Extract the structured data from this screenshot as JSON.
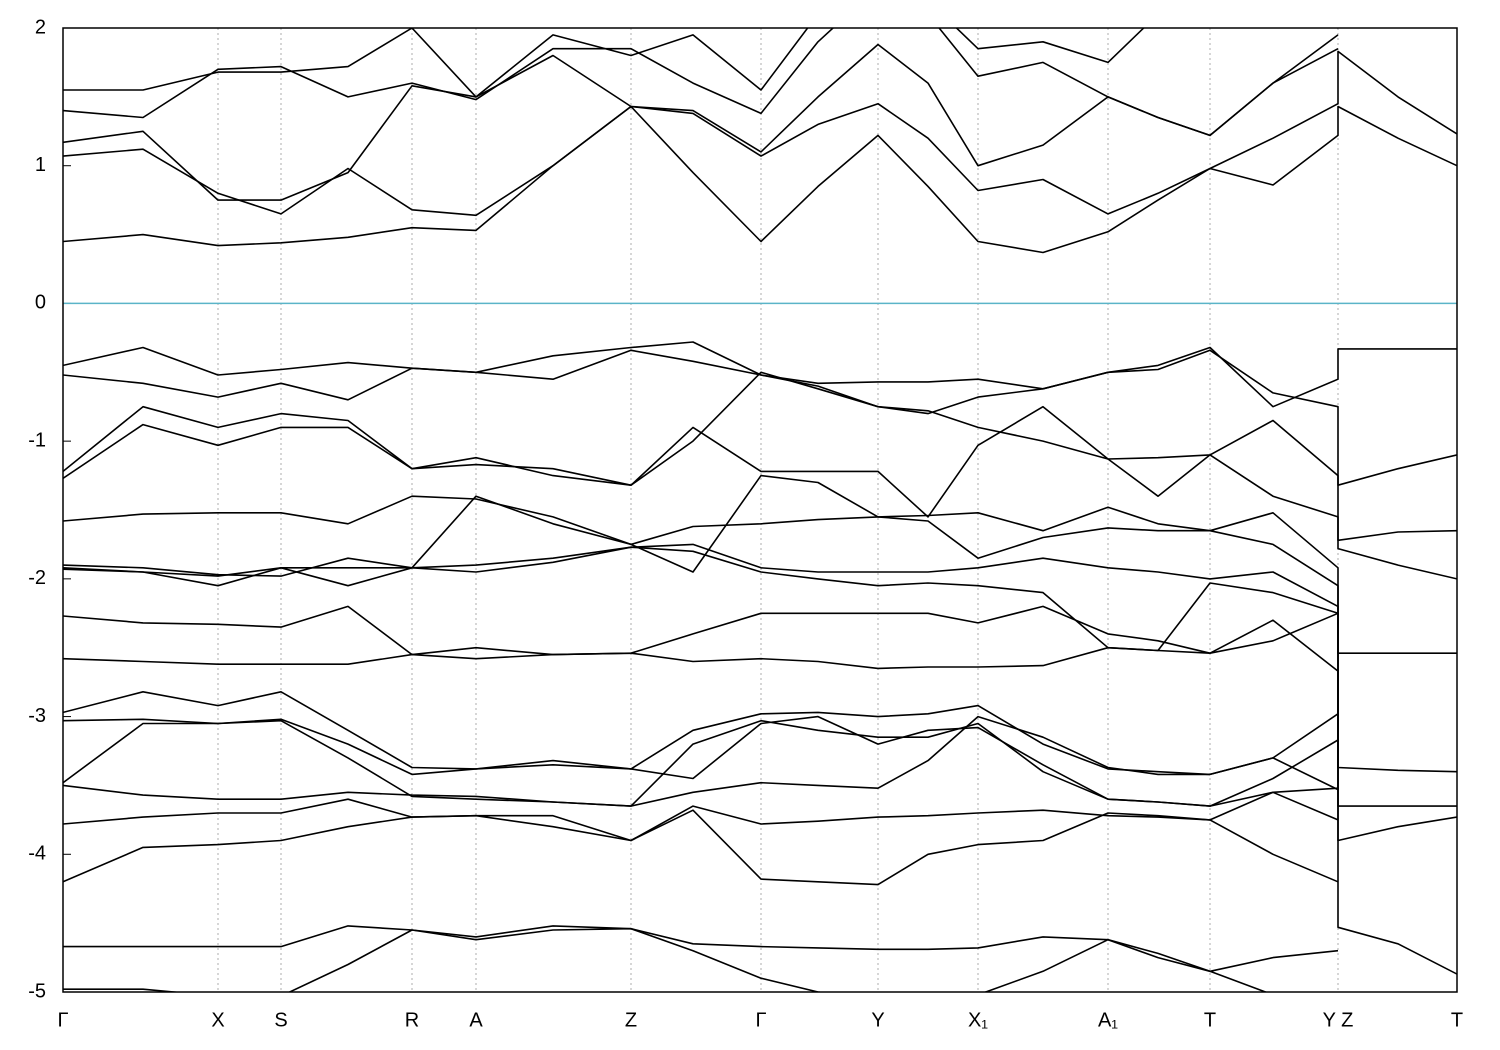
{
  "chart_data": {
    "type": "line",
    "x": [
      0,
      0.8,
      1.55,
      2.18,
      2.85,
      3.49,
      4.13,
      4.9,
      5.68,
      6.3,
      6.98,
      7.55,
      8.15,
      8.65,
      9.15,
      9.8,
      10.45,
      10.95,
      11.47,
      12.1,
      12.75,
      12.75,
      13.35,
      13.94
    ],
    "xlim": [
      0,
      13.94
    ],
    "xticks": [
      {
        "value": 0,
        "label": "Γ"
      },
      {
        "value": 1.55,
        "label": "X"
      },
      {
        "value": 2.18,
        "label": "S"
      },
      {
        "value": 3.49,
        "label": "R"
      },
      {
        "value": 4.13,
        "label": "A"
      },
      {
        "value": 5.68,
        "label": "Z"
      },
      {
        "value": 6.98,
        "label": "Γ"
      },
      {
        "value": 8.15,
        "label": "Y"
      },
      {
        "value": 9.15,
        "label": "X₁"
      },
      {
        "value": 10.45,
        "label": "A₁"
      },
      {
        "value": 11.47,
        "label": "T"
      },
      {
        "value": 12.75,
        "label": "Y Z"
      },
      {
        "value": 13.94,
        "label": "T"
      }
    ],
    "ylim": [
      -5,
      2
    ],
    "yticks": [
      -5,
      -4,
      -3,
      -2,
      -1,
      0,
      1,
      2
    ],
    "grid": true,
    "line_color": "#000000",
    "fermi_level": 0,
    "fermi_color": "#5ab4c8",
    "series": [
      {
        "values": [
          0.45,
          0.5,
          0.42,
          0.44,
          0.48,
          0.55,
          0.53,
          1.0,
          1.43,
          0.95,
          0.45,
          0.85,
          1.22,
          0.85,
          0.45,
          0.37,
          0.52,
          0.75,
          0.98,
          0.86,
          1.22,
          1.43,
          1.2,
          1.0
        ]
      },
      {
        "values": [
          1.07,
          1.12,
          0.8,
          0.65,
          0.98,
          0.68,
          0.64,
          1.0,
          1.43,
          1.38,
          1.07,
          1.3,
          1.45,
          1.2,
          0.82,
          0.9,
          0.65,
          0.8,
          0.98,
          1.2,
          1.45,
          1.83,
          1.5,
          1.23
        ]
      },
      {
        "values": [
          1.17,
          1.25,
          0.75,
          0.75,
          0.95,
          1.58,
          1.5,
          1.8,
          1.43,
          1.4,
          1.1,
          1.5,
          1.88,
          1.6,
          1.0,
          1.15,
          1.5,
          1.35,
          1.22,
          1.6,
          1.85,
          null,
          null,
          null
        ]
      },
      {
        "values": [
          1.4,
          1.35,
          1.7,
          1.72,
          1.5,
          1.6,
          1.48,
          1.85,
          1.85,
          1.6,
          1.38,
          1.9,
          2.3,
          2.1,
          1.65,
          1.75,
          1.5,
          1.35,
          1.22,
          1.6,
          1.95,
          null,
          null,
          null
        ]
      },
      {
        "values": [
          1.55,
          1.55,
          1.68,
          1.68,
          1.72,
          2.0,
          1.5,
          1.95,
          1.8,
          1.95,
          1.55,
          2.1,
          2.4,
          2.2,
          1.85,
          1.9,
          1.75,
          2.1,
          2.3,
          2.2,
          2.0,
          null,
          null,
          null
        ]
      },
      {
        "values": [
          -0.45,
          -0.32,
          -0.52,
          -0.48,
          -0.43,
          -0.47,
          -0.5,
          -0.38,
          -0.32,
          -0.28,
          -0.52,
          -0.6,
          -0.75,
          -0.8,
          -0.68,
          -0.62,
          -0.5,
          -0.45,
          -0.32,
          -0.75,
          -0.55,
          -0.33,
          -0.33,
          -0.33
        ]
      },
      {
        "values": [
          -0.52,
          -0.58,
          -0.68,
          -0.58,
          -0.7,
          -0.47,
          -0.5,
          -0.55,
          -0.34,
          -0.42,
          -0.52,
          -0.58,
          -0.57,
          -0.57,
          -0.55,
          -0.62,
          -0.5,
          -0.48,
          -0.34,
          -0.65,
          -0.75,
          -1.32,
          -1.2,
          -1.1
        ]
      },
      {
        "values": [
          -1.22,
          -0.75,
          -0.9,
          -0.8,
          -0.85,
          -1.2,
          -1.12,
          -1.25,
          -1.32,
          -1.0,
          -0.5,
          -0.62,
          -0.75,
          -0.78,
          -0.9,
          -1.0,
          -1.13,
          -1.12,
          -1.1,
          -0.85,
          -1.25,
          -1.72,
          -1.66,
          -1.65
        ]
      },
      {
        "values": [
          -1.27,
          -0.88,
          -1.03,
          -0.9,
          -0.9,
          -1.2,
          -1.17,
          -1.2,
          -1.32,
          -0.9,
          -1.22,
          -1.22,
          -1.22,
          -1.55,
          -1.03,
          -0.75,
          -1.13,
          -1.4,
          -1.1,
          -1.4,
          -1.55,
          -1.78,
          -1.9,
          -2.0
        ]
      },
      {
        "values": [
          -1.58,
          -1.53,
          -1.52,
          -1.52,
          -1.6,
          -1.4,
          -1.42,
          -1.55,
          -1.75,
          -1.62,
          -1.6,
          -1.57,
          -1.55,
          -1.54,
          -1.52,
          -1.65,
          -1.48,
          -1.6,
          -1.65,
          -1.52,
          -1.92,
          -2.54,
          -2.54,
          -2.54
        ]
      },
      {
        "values": [
          -1.9,
          -1.92,
          -1.97,
          -1.98,
          -1.85,
          -1.92,
          -1.4,
          -1.6,
          -1.75,
          -1.95,
          -1.25,
          -1.3,
          -1.55,
          -1.58,
          -1.85,
          -1.7,
          -1.63,
          -1.65,
          -1.65,
          -1.75,
          -2.05,
          -3.37,
          -3.39,
          -3.4
        ]
      },
      {
        "values": [
          -1.92,
          -1.95,
          -2.05,
          -1.92,
          -1.92,
          -1.92,
          -1.95,
          -1.88,
          -1.77,
          -1.75,
          -1.92,
          -1.95,
          -1.95,
          -1.95,
          -1.92,
          -1.85,
          -1.92,
          -1.95,
          -2.0,
          -1.95,
          -2.2,
          -3.65,
          -3.65,
          -3.65
        ]
      },
      {
        "values": [
          -1.93,
          -1.95,
          -1.98,
          -1.92,
          -2.05,
          -1.92,
          -1.9,
          -1.85,
          -1.77,
          -1.8,
          -1.95,
          -2.0,
          -2.05,
          -2.03,
          -2.05,
          -2.1,
          -2.5,
          -2.52,
          -2.03,
          -2.1,
          -2.25,
          -3.9,
          -3.8,
          -3.73
        ]
      },
      {
        "values": [
          -2.27,
          -2.32,
          -2.33,
          -2.35,
          -2.2,
          -2.55,
          -2.5,
          -2.55,
          -2.54,
          -2.4,
          -2.25,
          -2.25,
          -2.25,
          -2.25,
          -2.32,
          -2.2,
          -2.4,
          -2.45,
          -2.54,
          -2.3,
          -2.67,
          -4.53,
          -4.65,
          -4.87
        ]
      },
      {
        "values": [
          -2.58,
          -2.6,
          -2.62,
          -2.62,
          -2.62,
          -2.55,
          -2.58,
          -2.55,
          -2.54,
          -2.6,
          -2.58,
          -2.6,
          -2.65,
          -2.64,
          -2.64,
          -2.63,
          -2.5,
          -2.52,
          -2.54,
          -2.45,
          -2.25,
          null,
          null,
          null
        ]
      },
      {
        "values": [
          -2.97,
          -2.82,
          -2.92,
          -2.82,
          -3.1,
          -3.37,
          -3.38,
          -3.35,
          -3.38,
          -3.1,
          -2.98,
          -2.97,
          -3.0,
          -2.98,
          -2.92,
          -3.2,
          -3.38,
          -3.4,
          -3.42,
          -3.3,
          -2.98,
          null,
          null,
          null
        ]
      },
      {
        "values": [
          -3.03,
          -3.02,
          -3.05,
          -3.03,
          -3.3,
          -3.58,
          -3.6,
          -3.62,
          -3.65,
          -3.2,
          -3.03,
          -3.1,
          -3.15,
          -3.15,
          -3.05,
          -3.4,
          -3.6,
          -3.62,
          -3.65,
          -3.45,
          -3.17,
          null,
          null,
          null
        ]
      },
      {
        "values": [
          -3.48,
          -3.05,
          -3.05,
          -3.02,
          -3.2,
          -3.42,
          -3.38,
          -3.32,
          -3.38,
          -3.45,
          -3.05,
          -3.0,
          -3.2,
          -3.1,
          -3.08,
          -3.35,
          -3.6,
          -3.62,
          -3.65,
          -3.55,
          -3.52,
          null,
          null,
          null
        ]
      },
      {
        "values": [
          -3.5,
          -3.57,
          -3.6,
          -3.6,
          -3.55,
          -3.57,
          -3.58,
          -3.62,
          -3.65,
          -3.55,
          -3.48,
          -3.5,
          -3.52,
          -3.32,
          -3.0,
          -3.15,
          -3.37,
          -3.42,
          -3.42,
          -3.3,
          -3.53,
          null,
          null,
          null
        ]
      },
      {
        "values": [
          -3.78,
          -3.73,
          -3.7,
          -3.7,
          -3.6,
          -3.73,
          -3.72,
          -3.8,
          -3.9,
          -3.65,
          -3.78,
          -3.76,
          -3.73,
          -3.72,
          -3.7,
          -3.68,
          -3.72,
          -3.73,
          -3.75,
          -3.55,
          -3.75,
          null,
          null,
          null
        ]
      },
      {
        "values": [
          -4.2,
          -3.95,
          -3.93,
          -3.9,
          -3.8,
          -3.73,
          -3.72,
          -3.72,
          -3.9,
          -3.68,
          -4.18,
          -4.2,
          -4.22,
          -4.0,
          -3.93,
          -3.9,
          -3.7,
          -3.72,
          -3.75,
          -4.0,
          -4.2,
          null,
          null,
          null
        ]
      },
      {
        "values": [
          -4.67,
          -4.67,
          -4.67,
          -4.67,
          -4.52,
          -4.55,
          -4.6,
          -4.52,
          -4.54,
          -4.65,
          -4.67,
          -4.68,
          -4.69,
          -4.69,
          -4.68,
          -4.6,
          -4.62,
          -4.75,
          -4.85,
          -4.75,
          -4.7,
          null,
          null,
          null
        ]
      },
      {
        "values": [
          -4.98,
          -4.98,
          -5.03,
          -5.03,
          -4.8,
          -4.55,
          -4.62,
          -4.55,
          -4.54,
          -4.7,
          -4.9,
          -5.0,
          -5.05,
          -5.05,
          -5.02,
          -4.85,
          -4.62,
          -4.72,
          -4.85,
          -5.02,
          -5.1,
          null,
          null,
          null
        ]
      }
    ]
  }
}
